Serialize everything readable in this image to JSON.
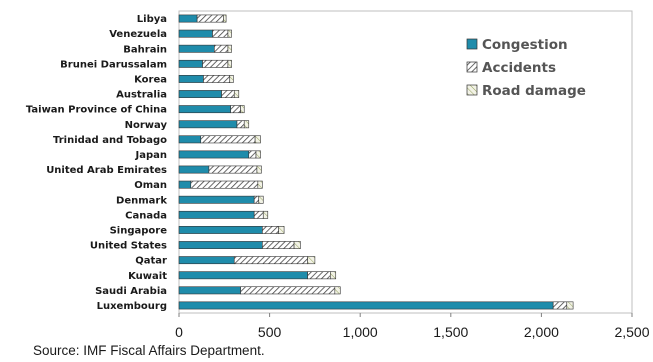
{
  "chart_data": {
    "type": "bar",
    "orientation": "horizontal",
    "stacked": true,
    "categories": [
      "Libya",
      "Venezuela",
      "Bahrain",
      "Brunei Darussalam",
      "Korea",
      "Australia",
      "Taiwan Province of China",
      "Norway",
      "Trinidad and Tobago",
      "Japan",
      "United Arab Emirates",
      "Oman",
      "Denmark",
      "Canada",
      "Singapore",
      "United States",
      "Qatar",
      "Kuwait",
      "Saudi Arabia",
      "Luxembourg"
    ],
    "series": [
      {
        "name": "Congestion",
        "color": "#1F8CAB",
        "pattern": "solid",
        "values": [
          100,
          185,
          195,
          130,
          135,
          235,
          285,
          320,
          120,
          385,
          165,
          65,
          415,
          415,
          460,
          460,
          305,
          710,
          340,
          2065
        ]
      },
      {
        "name": "Accidents",
        "color": "#555555",
        "pattern": "hatch",
        "values": [
          145,
          85,
          75,
          140,
          145,
          70,
          55,
          40,
          300,
          40,
          265,
          370,
          25,
          50,
          90,
          175,
          405,
          125,
          520,
          75
        ]
      },
      {
        "name": "Road damage",
        "color": "#7A8E3A",
        "pattern": "light-hatch",
        "values": [
          15,
          20,
          20,
          20,
          20,
          25,
          20,
          25,
          30,
          25,
          25,
          25,
          25,
          25,
          30,
          35,
          40,
          30,
          30,
          35
        ]
      }
    ],
    "xlim": [
      0,
      2500
    ],
    "xticks": [
      0,
      500,
      1000,
      1500,
      2000,
      2500
    ],
    "xtick_labels": [
      "0",
      "500",
      "1,000",
      "1,500",
      "2,000",
      "2,500"
    ],
    "legend_position": "top-right",
    "grid": false
  },
  "source_text": "Source: IMF Fiscal Affairs Department."
}
